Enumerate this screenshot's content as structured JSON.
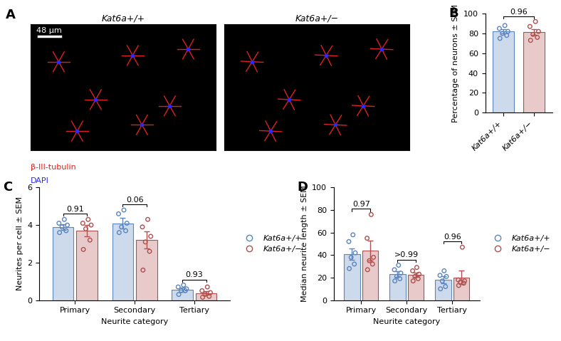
{
  "image_panel": {
    "panel": "A",
    "images": [
      {
        "title": "Kat6a+/+"
      },
      {
        "title": "Kat6a+/−"
      }
    ],
    "scale_bar": "48 µm",
    "stains": [
      {
        "name": "β-III-tubulin",
        "color": "#e0201b"
      },
      {
        "name": "DAPI",
        "color": "#2a2aff"
      }
    ]
  },
  "chart_data": [
    {
      "panel": "B",
      "type": "bar",
      "categories": [
        "Kat6a+/+",
        "Kat6a+/−"
      ],
      "values": [
        82,
        81.5
      ],
      "errors": [
        2,
        3
      ],
      "points": [
        [
          75,
          78,
          80,
          82,
          85,
          88
        ],
        [
          73,
          76,
          79,
          82,
          87,
          92
        ]
      ],
      "colors": [
        "#5b85bf",
        "#b0504e"
      ],
      "ylabel": "Percentage of neurons ± SEM",
      "ylim": [
        0,
        100
      ],
      "yticks": [
        0,
        20,
        40,
        60,
        80,
        100
      ],
      "p_values": [
        "0.96"
      ]
    },
    {
      "panel": "C",
      "type": "bar",
      "categories": [
        "Primary",
        "Secondary",
        "Tertiary"
      ],
      "series": [
        {
          "name": "Kat6a+/+",
          "color": "#5b85bf",
          "values": [
            3.9,
            4.1,
            0.55
          ],
          "errors": [
            0.15,
            0.3,
            0.1
          ],
          "points": [
            [
              3.6,
              3.7,
              3.9,
              4.0,
              4.1,
              4.3
            ],
            [
              3.6,
              3.7,
              3.9,
              4.1,
              4.6,
              4.8
            ],
            [
              0.3,
              0.5,
              0.5,
              0.6,
              0.7,
              0.8
            ]
          ]
        },
        {
          "name": "Kat6a+/−",
          "color": "#b0504e",
          "values": [
            3.7,
            3.2,
            0.38
          ],
          "errors": [
            0.3,
            0.45,
            0.1
          ],
          "points": [
            [
              2.7,
              3.2,
              3.8,
              4.0,
              4.1,
              4.3
            ],
            [
              1.6,
              2.6,
              3.1,
              3.4,
              3.9,
              4.3
            ],
            [
              0.15,
              0.2,
              0.3,
              0.4,
              0.5,
              0.7
            ]
          ]
        }
      ],
      "xlabel": "Neurite category",
      "ylabel": "Neurites per cell ± SEM",
      "ylim": [
        0,
        6
      ],
      "yticks": [
        0,
        2,
        4,
        6
      ],
      "p_values": [
        "0.91",
        "0.06",
        "0.93"
      ],
      "legend": "right"
    },
    {
      "panel": "D",
      "type": "bar",
      "categories": [
        "Primary",
        "Secondary",
        "Tertiary"
      ],
      "series": [
        {
          "name": "Kat6a+/+",
          "color": "#5b85bf",
          "values": [
            41,
            23,
            18
          ],
          "errors": [
            5,
            2.5,
            3
          ],
          "points": [
            [
              28,
              32,
              38,
              42,
              52,
              58
            ],
            [
              17,
              19,
              21,
              24,
              27,
              31
            ],
            [
              10,
              12,
              17,
              21,
              22,
              26
            ]
          ]
        },
        {
          "name": "Kat6a+/−",
          "color": "#b0504e",
          "values": [
            44,
            22.5,
            20
          ],
          "errors": [
            9,
            2,
            6
          ],
          "points": [
            [
              27,
              32,
              35,
              38,
              55,
              76
            ],
            [
              17,
              19,
              21,
              23,
              26,
              29
            ],
            [
              13,
              15,
              16,
              17,
              18,
              47
            ]
          ]
        }
      ],
      "xlabel": "Neurite category",
      "ylabel": "Median neurite length ± SEM",
      "ylim": [
        0,
        100
      ],
      "yticks": [
        0,
        20,
        40,
        60,
        80,
        100
      ],
      "p_values": [
        "0.97",
        ">0.99",
        "0.96"
      ],
      "legend": "right"
    }
  ]
}
